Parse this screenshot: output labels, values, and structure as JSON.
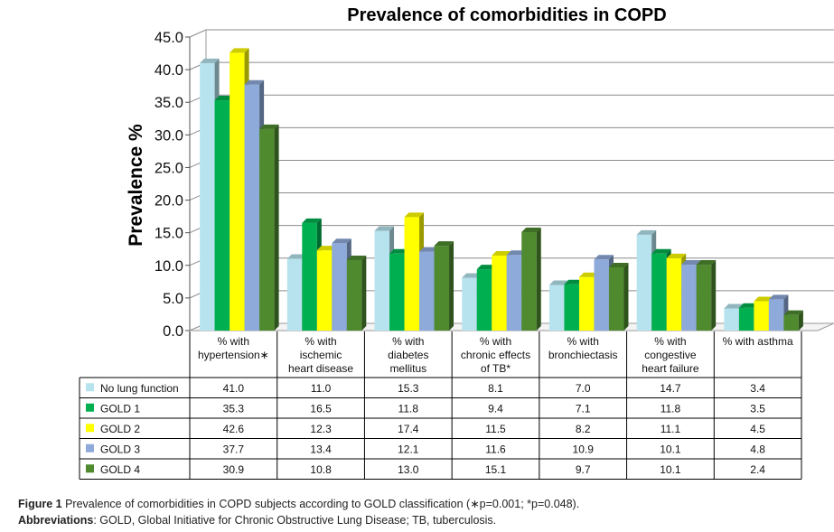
{
  "chart_data": {
    "type": "bar",
    "title": "Prevalence of comorbidities in COPD",
    "xlabel": "",
    "ylabel": "Prevalence %",
    "ylim": [
      0,
      45
    ],
    "yticks": [
      "0.0",
      "5.0",
      "10.0",
      "15.0",
      "20.0",
      "25.0",
      "30.0",
      "35.0",
      "40.0",
      "45.0"
    ],
    "grid": true,
    "legend_placement": "data-table-left",
    "categories": [
      [
        "% with",
        "hypertension∗"
      ],
      [
        "% with",
        "ischemic",
        "heart disease"
      ],
      [
        "% with",
        "diabetes",
        "mellitus"
      ],
      [
        "% with",
        "chronic effects",
        "of TB*"
      ],
      [
        "% with",
        "bronchiectasis"
      ],
      [
        "% with",
        "congestive",
        "heart failure"
      ],
      [
        "% with asthma"
      ]
    ],
    "series": [
      {
        "name": "No lung function",
        "color": "#b7e3ee",
        "values": [
          41.0,
          11.0,
          15.3,
          8.1,
          7.0,
          14.7,
          3.4
        ],
        "labels": [
          "41.0",
          "11.0",
          "15.3",
          "8.1",
          "7.0",
          "14.7",
          "3.4"
        ]
      },
      {
        "name": "GOLD 1",
        "color": "#00b050",
        "values": [
          35.3,
          16.5,
          11.8,
          9.4,
          7.1,
          11.8,
          3.5
        ],
        "labels": [
          "35.3",
          "16.5",
          "11.8",
          "9.4",
          "7.1",
          "11.8",
          "3.5"
        ]
      },
      {
        "name": "GOLD 2",
        "color": "#ffff00",
        "values": [
          42.6,
          12.3,
          17.4,
          11.5,
          8.2,
          11.1,
          4.5
        ],
        "labels": [
          "42.6",
          "12.3",
          "17.4",
          "11.5",
          "8.2",
          "11.1",
          "4.5"
        ]
      },
      {
        "name": "GOLD 3",
        "color": "#8eaadb",
        "values": [
          37.7,
          13.4,
          12.1,
          11.6,
          10.9,
          10.1,
          4.8
        ],
        "labels": [
          "37.7",
          "13.4",
          "12.1",
          "11.6",
          "10.9",
          "10.1",
          "4.8"
        ]
      },
      {
        "name": "GOLD 4",
        "color": "#4f8a2f",
        "values": [
          30.9,
          10.8,
          13.0,
          15.1,
          9.7,
          10.1,
          2.4
        ],
        "labels": [
          "30.9",
          "10.8",
          "13.0",
          "15.1",
          "9.7",
          "10.1",
          "2.4"
        ]
      }
    ]
  },
  "caption": {
    "figure_label": "Figure 1",
    "figure_text": " Prevalence of comorbidities in COPD subjects according to GOLD classification (∗p=0.001; *p=0.048).",
    "abbrev_label": "Abbreviations",
    "abbrev_text": ": GOLD, Global Initiative for Chronic Obstructive Lung Disease; TB, tuberculosis."
  }
}
